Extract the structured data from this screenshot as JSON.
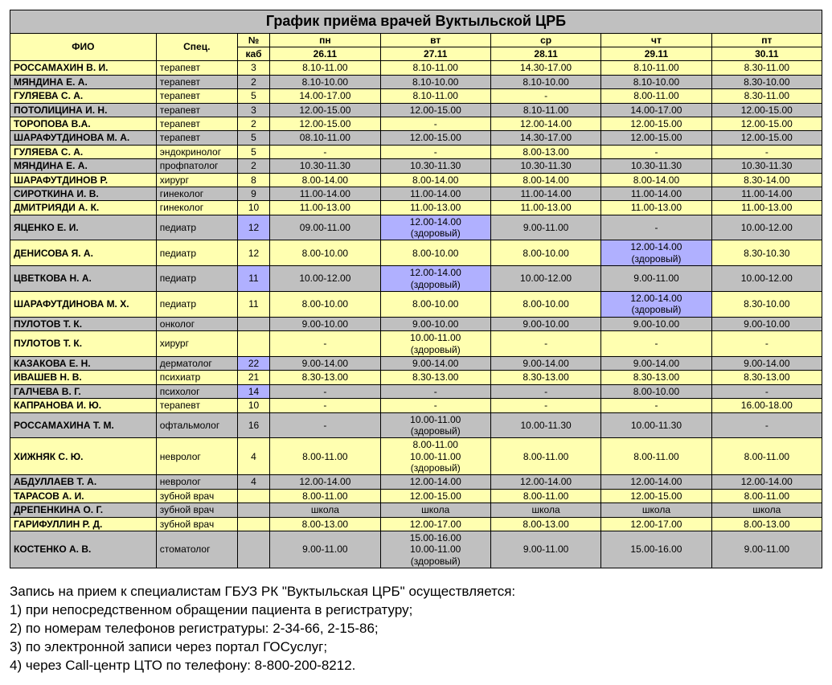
{
  "title": "График приёма врачей Вуктыльской ЦРБ",
  "headers": {
    "fio": "ФИО",
    "spec": "Спец.",
    "room_top": "№",
    "room_bot": "каб",
    "weekdays": [
      "пн",
      "вт",
      "ср",
      "чт",
      "пт"
    ],
    "dates": [
      "26.11",
      "27.11",
      "28.11",
      "29.11",
      "30.11"
    ]
  },
  "colors": {
    "bg_gray": "#c0c0c0",
    "bg_yellow": "#ffffb0",
    "bg_blue": "#b0b0ff",
    "border": "#000000"
  },
  "rows": [
    {
      "name": "РОССАМАХИН В. И.",
      "spec": "терапевт",
      "room": "3",
      "stripe": "yellow",
      "cells": [
        {
          "v": "8.10-11.00"
        },
        {
          "v": "8.10-11.00"
        },
        {
          "v": "14.30-17.00"
        },
        {
          "v": "8.10-11.00"
        },
        {
          "v": "8.30-11.00"
        }
      ]
    },
    {
      "name": "МЯНДИНА Е. А.",
      "spec": "терапевт",
      "room": "2",
      "stripe": "gray",
      "cells": [
        {
          "v": "8.10-10.00"
        },
        {
          "v": "8.10-10.00"
        },
        {
          "v": "8.10-10.00"
        },
        {
          "v": "8.10-10.00"
        },
        {
          "v": "8.30-10.00"
        }
      ]
    },
    {
      "name": "ГУЛЯЕВА С. А.",
      "spec": "терапевт",
      "room": "5",
      "stripe": "yellow",
      "cells": [
        {
          "v": "14.00-17.00"
        },
        {
          "v": "8.10-11.00"
        },
        {
          "v": "-"
        },
        {
          "v": "8.00-11.00"
        },
        {
          "v": "8.30-11.00"
        }
      ]
    },
    {
      "name": "ПОТОЛИЦИНА И. Н.",
      "spec": "терапевт",
      "room": "3",
      "stripe": "gray",
      "cells": [
        {
          "v": "12.00-15.00"
        },
        {
          "v": "12.00-15.00"
        },
        {
          "v": "8.10-11.00"
        },
        {
          "v": "14.00-17.00"
        },
        {
          "v": "12.00-15.00"
        }
      ]
    },
    {
      "name": "ТОРОПОВА В.А.",
      "spec": "терапевт",
      "room": "2",
      "stripe": "yellow",
      "cells": [
        {
          "v": "12.00-15.00"
        },
        {
          "v": "-"
        },
        {
          "v": "12.00-14.00"
        },
        {
          "v": "12.00-15.00"
        },
        {
          "v": "12.00-15.00"
        }
      ]
    },
    {
      "name": "ШАРАФУТДИНОВА М. А.",
      "spec": "терапевт",
      "room": "5",
      "stripe": "gray",
      "cells": [
        {
          "v": "08.10-11.00"
        },
        {
          "v": "12.00-15.00"
        },
        {
          "v": "14.30-17.00"
        },
        {
          "v": "12.00-15.00"
        },
        {
          "v": "12.00-15.00"
        }
      ]
    },
    {
      "name": "ГУЛЯЕВА С. А.",
      "spec": "эндокринолог",
      "room": "5",
      "stripe": "yellow",
      "cells": [
        {
          "v": "-"
        },
        {
          "v": "-"
        },
        {
          "v": "8.00-13.00"
        },
        {
          "v": "-"
        },
        {
          "v": "-"
        }
      ]
    },
    {
      "name": "МЯНДИНА Е. А.",
      "spec": "профпатолог",
      "room": "2",
      "stripe": "gray",
      "cells": [
        {
          "v": "10.30-11.30"
        },
        {
          "v": "10.30-11.30"
        },
        {
          "v": "10.30-11.30"
        },
        {
          "v": "10.30-11.30"
        },
        {
          "v": "10.30-11.30"
        }
      ]
    },
    {
      "name": "ШАРАФУТДИНОВ Р.",
      "spec": "хирург",
      "room": "8",
      "stripe": "yellow",
      "cells": [
        {
          "v": "8.00-14.00"
        },
        {
          "v": "8.00-14.00"
        },
        {
          "v": "8.00-14.00"
        },
        {
          "v": "8.00-14.00"
        },
        {
          "v": "8.30-14.00"
        }
      ]
    },
    {
      "name": "СИРОТКИНА И. В.",
      "spec": "гинеколог",
      "room": "9",
      "stripe": "gray",
      "cells": [
        {
          "v": "11.00-14.00"
        },
        {
          "v": "11.00-14.00"
        },
        {
          "v": "11.00-14.00"
        },
        {
          "v": "11.00-14.00"
        },
        {
          "v": "11.00-14.00"
        }
      ]
    },
    {
      "name": "ДМИТРИЯДИ А. К.",
      "spec": "гинеколог",
      "room": "10",
      "stripe": "yellow",
      "cells": [
        {
          "v": "11.00-13.00"
        },
        {
          "v": "11.00-13.00"
        },
        {
          "v": "11.00-13.00"
        },
        {
          "v": "11.00-13.00"
        },
        {
          "v": "11.00-13.00"
        }
      ]
    },
    {
      "name": "ЯЦЕНКО Е. И.",
      "spec": "педиатр",
      "room": "12",
      "room_blue": true,
      "stripe": "gray",
      "cells": [
        {
          "v": "09.00-11.00"
        },
        {
          "v": "12.00-14.00 (здоровый)",
          "blue": true
        },
        {
          "v": "9.00-11.00"
        },
        {
          "v": "-"
        },
        {
          "v": "10.00-12.00"
        }
      ]
    },
    {
      "name": "ДЕНИСОВА Я. А.",
      "spec": "педиатр",
      "room": "12",
      "stripe": "yellow",
      "cells": [
        {
          "v": "8.00-10.00"
        },
        {
          "v": "8.00-10.00"
        },
        {
          "v": "8.00-10.00"
        },
        {
          "v": "12.00-14.00 (здоровый)",
          "blue": true
        },
        {
          "v": "8.30-10.30"
        }
      ]
    },
    {
      "name": "ЦВЕТКОВА Н. А.",
      "spec": "педиатр",
      "room": "11",
      "room_blue": true,
      "stripe": "gray",
      "cells": [
        {
          "v": "10.00-12.00"
        },
        {
          "v": "12.00-14.00 (здоровый)",
          "blue": true
        },
        {
          "v": "10.00-12.00"
        },
        {
          "v": "9.00-11.00"
        },
        {
          "v": "10.00-12.00"
        }
      ]
    },
    {
      "name": "ШАРАФУТДИНОВА М. Х.",
      "spec": "педиатр",
      "room": "11",
      "stripe": "yellow",
      "cells": [
        {
          "v": "8.00-10.00"
        },
        {
          "v": "8.00-10.00"
        },
        {
          "v": "8.00-10.00"
        },
        {
          "v": "12.00-14.00 (здоровый)",
          "blue": true
        },
        {
          "v": "8.30-10.00"
        }
      ]
    },
    {
      "name": "ПУЛОТОВ Т. К.",
      "spec": "онколог",
      "room": "",
      "stripe": "gray",
      "cells": [
        {
          "v": "9.00-10.00"
        },
        {
          "v": "9.00-10.00"
        },
        {
          "v": "9.00-10.00"
        },
        {
          "v": "9.00-10.00"
        },
        {
          "v": "9.00-10.00"
        }
      ]
    },
    {
      "name": "ПУЛОТОВ Т. К.",
      "spec": "хирург",
      "room": "",
      "stripe": "yellow",
      "cells": [
        {
          "v": "-"
        },
        {
          "v": "10.00-11.00 (здоровый)"
        },
        {
          "v": "-"
        },
        {
          "v": "-"
        },
        {
          "v": "-"
        }
      ]
    },
    {
      "name": "КАЗАКОВА Е. Н.",
      "spec": "дерматолог",
      "room": "22",
      "room_blue": true,
      "stripe": "gray",
      "cells": [
        {
          "v": "9.00-14.00"
        },
        {
          "v": "9.00-14.00"
        },
        {
          "v": "9.00-14.00"
        },
        {
          "v": "9.00-14.00"
        },
        {
          "v": "9.00-14.00"
        }
      ]
    },
    {
      "name": "ИВАШЕВ Н. В.",
      "spec": "психиатр",
      "room": "21",
      "stripe": "yellow",
      "cells": [
        {
          "v": "8.30-13.00"
        },
        {
          "v": "8.30-13.00"
        },
        {
          "v": "8.30-13.00"
        },
        {
          "v": "8.30-13.00"
        },
        {
          "v": "8.30-13.00"
        }
      ]
    },
    {
      "name": "ГАЛЧЕВА В. Г.",
      "spec": "психолог",
      "room": "14",
      "room_blue": true,
      "stripe": "gray",
      "cells": [
        {
          "v": "-"
        },
        {
          "v": "-"
        },
        {
          "v": "-"
        },
        {
          "v": "8.00-10.00"
        },
        {
          "v": "-"
        }
      ]
    },
    {
      "name": "КАПРАНОВА И. Ю.",
      "spec": "терапевт",
      "room": "10",
      "stripe": "yellow",
      "cells": [
        {
          "v": "-"
        },
        {
          "v": "-"
        },
        {
          "v": "-"
        },
        {
          "v": "-"
        },
        {
          "v": "16.00-18.00"
        }
      ]
    },
    {
      "name": "РОССАМАХИНА Т. М.",
      "spec": "офтальмолог",
      "room": "16",
      "stripe": "gray",
      "cells": [
        {
          "v": "-"
        },
        {
          "v": "10.00-11.00 (здоровый)"
        },
        {
          "v": "10.00-11.30"
        },
        {
          "v": "10.00-11.30"
        },
        {
          "v": "-"
        }
      ]
    },
    {
      "name": "ХИЖНЯК С. Ю.",
      "spec": "невролог",
      "room": "4",
      "stripe": "yellow",
      "cells": [
        {
          "v": "8.00-11.00"
        },
        {
          "v": "8.00-11.00",
          "v2": "10.00-11.00 (здоровый)"
        },
        {
          "v": "8.00-11.00"
        },
        {
          "v": "8.00-11.00"
        },
        {
          "v": "8.00-11.00"
        }
      ]
    },
    {
      "name": "АБДУЛЛАЕВ Т. А.",
      "spec": "невролог",
      "room": "4",
      "stripe": "gray",
      "cells": [
        {
          "v": "12.00-14.00"
        },
        {
          "v": "12.00-14.00"
        },
        {
          "v": "12.00-14.00"
        },
        {
          "v": "12.00-14.00"
        },
        {
          "v": "12.00-14.00"
        }
      ]
    },
    {
      "name": "ТАРАСОВ А. И.",
      "spec": "зубной врач",
      "room": "",
      "stripe": "yellow",
      "cells": [
        {
          "v": "8.00-11.00"
        },
        {
          "v": "12.00-15.00"
        },
        {
          "v": "8.00-11.00"
        },
        {
          "v": "12.00-15.00"
        },
        {
          "v": "8.00-11.00"
        }
      ]
    },
    {
      "name": "ДРЕПЕНКИНА О. Г.",
      "spec": "зубной врач",
      "room": "",
      "stripe": "gray",
      "cells": [
        {
          "v": "школа"
        },
        {
          "v": "школа"
        },
        {
          "v": "школа"
        },
        {
          "v": "школа"
        },
        {
          "v": "школа"
        }
      ]
    },
    {
      "name": "ГАРИФУЛЛИН Р. Д.",
      "spec": "зубной врач",
      "room": "",
      "stripe": "yellow",
      "cells": [
        {
          "v": "8.00-13.00"
        },
        {
          "v": "12.00-17.00"
        },
        {
          "v": "8.00-13.00"
        },
        {
          "v": "12.00-17.00"
        },
        {
          "v": "8.00-13.00"
        }
      ]
    },
    {
      "name": "КОСТЕНКО А. В.",
      "spec": "стоматолог",
      "room": "",
      "stripe": "gray",
      "cells": [
        {
          "v": "9.00-11.00"
        },
        {
          "v": "15.00-16.00",
          "v2": "10.00-11.00 (здоровый)"
        },
        {
          "v": "9.00-11.00"
        },
        {
          "v": "15.00-16.00"
        },
        {
          "v": "9.00-11.00"
        }
      ]
    }
  ],
  "footer": [
    "Запись на прием к специалистам ГБУЗ РК \"Вуктыльская ЦРБ\" осуществляется:",
    "1) при непосредственном обращении пациента в регистратуру;",
    "2) по номерам телефонов регистратуры: 2-34-66, 2-15-86;",
    "3) по электронной записи через портал ГОСуслуг;",
    "4) через Call-центр ЦТО по телефону: 8-800-200-8212."
  ]
}
